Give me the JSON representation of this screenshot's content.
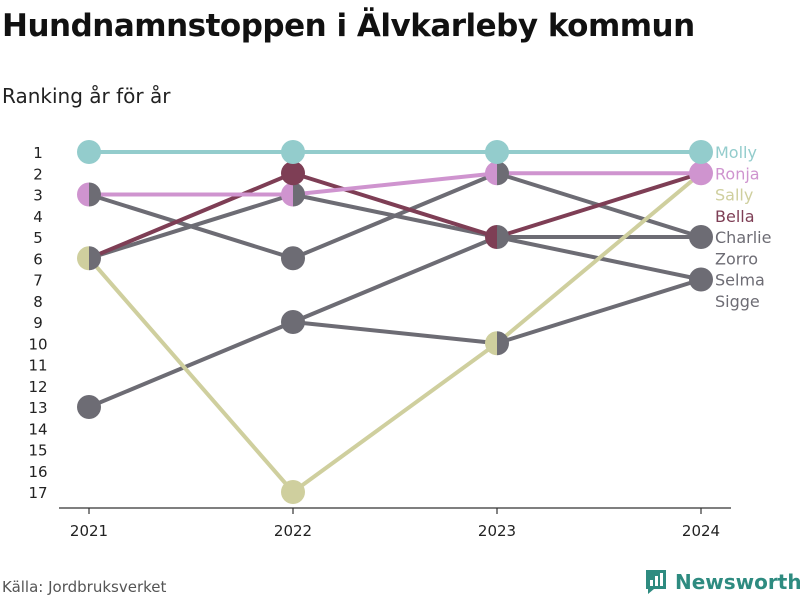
{
  "title": "Hundnamnstoppen i Älvkarleby kommun",
  "subtitle": "Ranking år för år",
  "source": "Källa: Jordbruksverket",
  "brand": {
    "name": "Newsworthy",
    "icon": "newsworthy-logo-icon",
    "color": "#2e8b80"
  },
  "chart_data": {
    "type": "line",
    "title": "Hundnamnstoppen i Älvkarleby kommun",
    "subtitle": "Ranking år för år",
    "x": [
      "2021",
      "2022",
      "2023",
      "2024"
    ],
    "y_ticks": [
      1,
      2,
      3,
      4,
      5,
      6,
      7,
      8,
      9,
      10,
      11,
      12,
      13,
      14,
      15,
      16,
      17
    ],
    "ylim": [
      1,
      17
    ],
    "y_reversed": true,
    "grid": false,
    "legend": "right-end labels",
    "series": [
      {
        "name": "Sigge",
        "values": [
          13,
          9,
          5,
          5
        ],
        "color": "#6d6c74"
      },
      {
        "name": "Selma",
        "values": [
          6,
          3,
          5,
          7
        ],
        "color": "#6d6c74"
      },
      {
        "name": "Zorro",
        "values": [
          null,
          9,
          10,
          7
        ],
        "color": "#6d6c74"
      },
      {
        "name": "Charlie",
        "values": [
          3,
          6,
          2,
          5
        ],
        "color": "#6d6c74"
      },
      {
        "name": "Bella",
        "values": [
          6,
          2,
          5,
          2
        ],
        "color": "#7e3e55"
      },
      {
        "name": "Sally",
        "values": [
          6,
          17,
          10,
          2
        ],
        "color": "#cfcf9e"
      },
      {
        "name": "Ronja",
        "values": [
          3,
          3,
          2,
          2
        ],
        "color": "#cf94cf"
      },
      {
        "name": "Molly",
        "values": [
          1,
          1,
          1,
          1
        ],
        "color": "#93cccc"
      }
    ],
    "end_labels": [
      {
        "name": "Molly",
        "color": "#93cccc"
      },
      {
        "name": "Ronja",
        "color": "#cf94cf"
      },
      {
        "name": "Sally",
        "color": "#cfcf9e"
      },
      {
        "name": "Bella",
        "color": "#7e3e55"
      },
      {
        "name": "Charlie",
        "color": "#6d6c74"
      },
      {
        "name": "Zorro",
        "color": "#6d6c74"
      },
      {
        "name": "Selma",
        "color": "#6d6c74"
      },
      {
        "name": "Sigge",
        "color": "#6d6c74"
      }
    ]
  }
}
